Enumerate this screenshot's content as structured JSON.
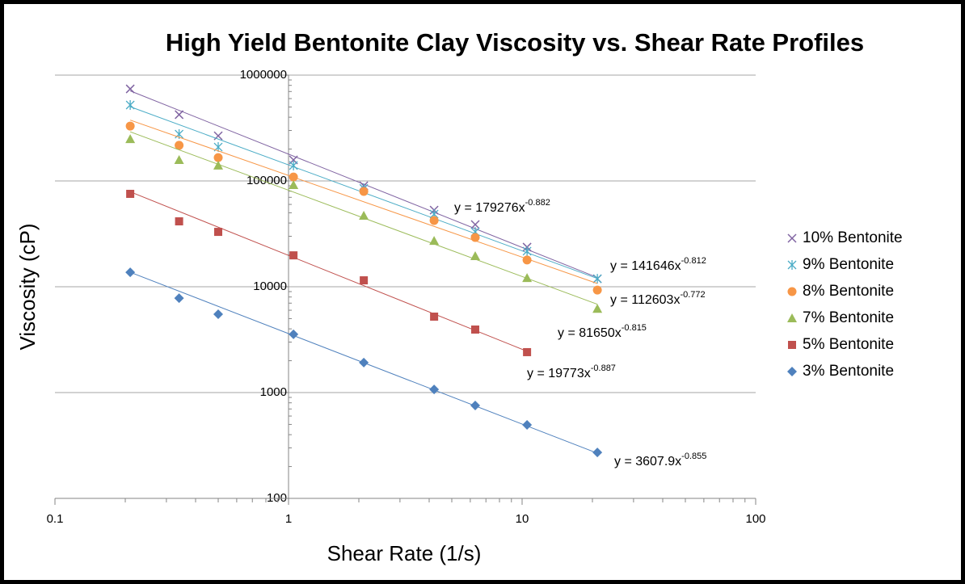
{
  "chart_data": {
    "type": "scatter",
    "title": "High Yield Bentonite Clay Viscosity vs. Shear Rate Profiles",
    "x_label": "Shear Rate (1/s)",
    "y_label": "Viscosity (cP)",
    "xscale": "log",
    "yscale": "log",
    "xlim": [
      0.1,
      100
    ],
    "ylim": [
      100,
      1000000
    ],
    "xticks": [
      0.1,
      1,
      10,
      100
    ],
    "yticks": [
      100,
      1000,
      10000,
      100000,
      1000000
    ],
    "y_axis_crosses": 1,
    "grid": true,
    "legend": "right",
    "series": [
      {
        "name": "10% Bentonite",
        "color": "#8064a2",
        "marker": "x",
        "x": [
          0.21,
          0.34,
          0.5,
          1.05,
          2.1,
          4.2,
          6.3,
          10.5,
          21
        ],
        "values": [
          741000,
          423000,
          267000,
          158000,
          90000,
          53000,
          38700,
          23700,
          11900
        ],
        "trendline": {
          "label": "y = 179276x",
          "coefficient": 179276,
          "exponent": -0.882
        }
      },
      {
        "name": "9% Bentonite",
        "color": "#4bacc6",
        "marker": "asterisk",
        "x": [
          0.21,
          0.34,
          0.5,
          1.05,
          2.1,
          4.2,
          6.3,
          10.5,
          21
        ],
        "values": [
          522000,
          277000,
          209000,
          140000,
          85000,
          48600,
          33000,
          21700,
          11900
        ],
        "trendline": {
          "label": "y = 141646x",
          "coefficient": 141646,
          "exponent": -0.812
        }
      },
      {
        "name": "8% Bentonite",
        "color": "#f79646",
        "marker": "circle",
        "x": [
          0.21,
          0.34,
          0.5,
          1.05,
          2.1,
          4.2,
          6.3,
          10.5,
          21
        ],
        "values": [
          330000,
          217000,
          166000,
          109000,
          79600,
          42300,
          29200,
          17900,
          9300
        ],
        "trendline": {
          "label": "y = 112603x",
          "coefficient": 112603,
          "exponent": -0.772
        }
      },
      {
        "name": "7% Bentonite",
        "color": "#9bbb59",
        "marker": "triangle",
        "x": [
          0.21,
          0.34,
          0.5,
          1.05,
          2.1,
          4.2,
          6.3,
          10.5,
          21
        ],
        "values": [
          249000,
          158000,
          140000,
          91600,
          47000,
          27200,
          19500,
          12100,
          6200
        ],
        "trendline": {
          "label": "y = 81650x",
          "coefficient": 81650,
          "exponent": -0.815
        }
      },
      {
        "name": "5% Bentonite",
        "color": "#c0504d",
        "marker": "square",
        "x": [
          0.21,
          0.34,
          0.5,
          1.05,
          2.1,
          4.2,
          6.3,
          10.5
        ],
        "values": [
          75500,
          41500,
          33000,
          19800,
          11500,
          5220,
          3940,
          2410
        ],
        "trendline": {
          "label": "y = 19773x",
          "coefficient": 19773,
          "exponent": -0.887
        }
      },
      {
        "name": "3% Bentonite",
        "color": "#4f81bd",
        "marker": "diamond",
        "x": [
          0.21,
          0.34,
          0.5,
          1.05,
          2.1,
          4.2,
          6.3,
          10.5,
          21
        ],
        "values": [
          13700,
          7800,
          5500,
          3550,
          1920,
          1070,
          755,
          495,
          272
        ],
        "trendline": {
          "label": "y = 3607.9x",
          "coefficient": 3607.9,
          "exponent": -0.855
        }
      }
    ]
  }
}
